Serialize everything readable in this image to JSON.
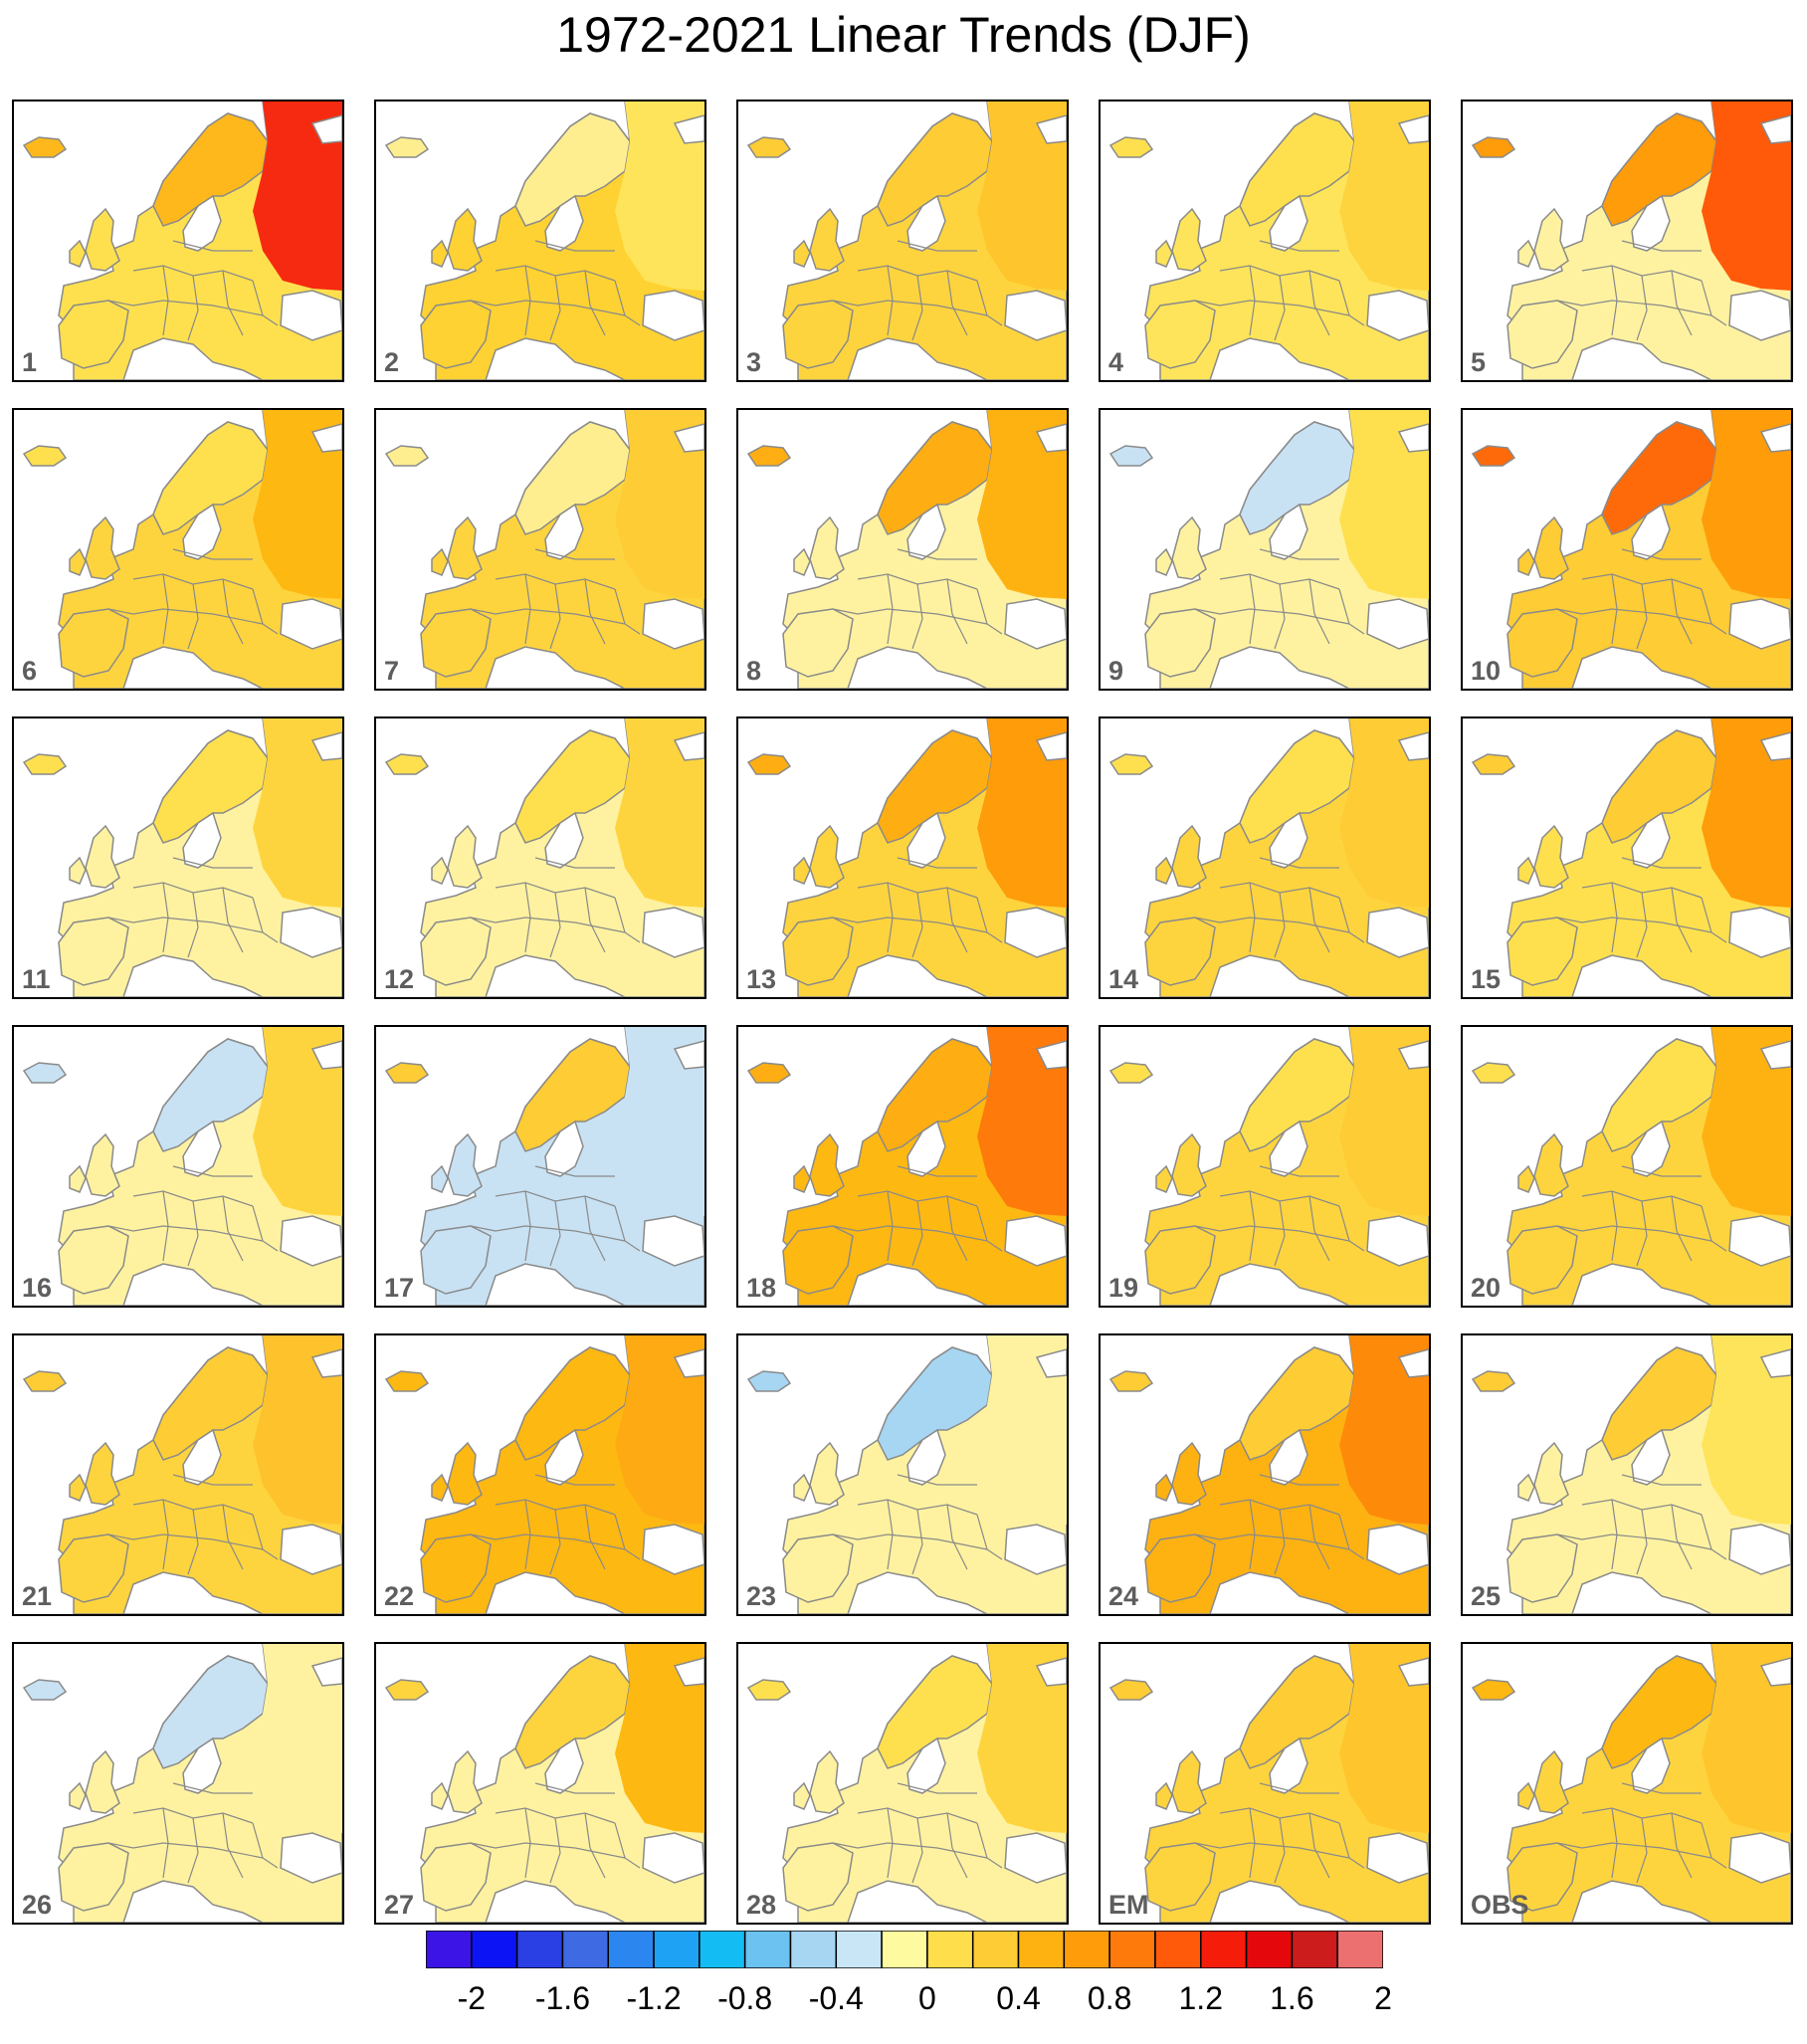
{
  "title": "1972-2021 Linear Trends (DJF)",
  "colorbar": {
    "colors": [
      "#3c14e6",
      "#0c14f6",
      "#2a40e4",
      "#3e6ae4",
      "#2c86f0",
      "#1ea3f4",
      "#14bcf4",
      "#6cc2f0",
      "#a6d6f2",
      "#c8e6f6",
      "#fefaa0",
      "#fede4a",
      "#fecc34",
      "#feb212",
      "#fe9c0a",
      "#fe7a0a",
      "#fe5a0a",
      "#f61c0a",
      "#e4080c",
      "#cc1c1c",
      "#ec7070"
    ],
    "tick_labels": [
      "-2",
      "-1.6",
      "-1.2",
      "-0.8",
      "-0.4",
      "0",
      "0.4",
      "0.8",
      "1.2",
      "1.6",
      "2"
    ]
  },
  "panels": [
    {
      "label": "1",
      "fills": {
        "background": "#fee04e",
        "north": "#feb81c",
        "east": "#f62a10"
      }
    },
    {
      "label": "2",
      "fills": {
        "background": "#fed232",
        "north": "#feee90",
        "east": "#fee45a"
      }
    },
    {
      "label": "3",
      "fills": {
        "background": "#fed43e",
        "north": "#fecc34",
        "east": "#fec62c"
      }
    },
    {
      "label": "4",
      "fills": {
        "background": "#fee45a",
        "north": "#fee04e",
        "east": "#fed43e"
      }
    },
    {
      "label": "5",
      "fills": {
        "background": "#fef2a0",
        "north": "#fe9c0a",
        "east": "#fe5a0a"
      }
    },
    {
      "label": "6",
      "fills": {
        "background": "#fed43e",
        "north": "#fee04e",
        "east": "#feb812"
      }
    },
    {
      "label": "7",
      "fills": {
        "background": "#fed43e",
        "north": "#feee90",
        "east": "#fecc34"
      }
    },
    {
      "label": "8",
      "fills": {
        "background": "#fef2a0",
        "north": "#feae12",
        "east": "#feb212"
      }
    },
    {
      "label": "9",
      "fills": {
        "background": "#fef2a0",
        "north": "#c8e2f4",
        "east": "#fee04e"
      }
    },
    {
      "label": "10",
      "fills": {
        "background": "#fecc34",
        "north": "#fe6a0a",
        "east": "#fe9c0a"
      }
    },
    {
      "label": "11",
      "fills": {
        "background": "#fef2a0",
        "north": "#fee04e",
        "east": "#fed43e"
      }
    },
    {
      "label": "12",
      "fills": {
        "background": "#fef2a0",
        "north": "#fee04e",
        "east": "#fed43e"
      }
    },
    {
      "label": "13",
      "fills": {
        "background": "#fed43e",
        "north": "#feae12",
        "east": "#fe9c0a"
      }
    },
    {
      "label": "14",
      "fills": {
        "background": "#fed43e",
        "north": "#fee04e",
        "east": "#fecc34"
      }
    },
    {
      "label": "15",
      "fills": {
        "background": "#fee04e",
        "north": "#fecc34",
        "east": "#fe9c0a"
      }
    },
    {
      "label": "16",
      "fills": {
        "background": "#fef2a0",
        "north": "#c8e2f4",
        "east": "#fed43e"
      }
    },
    {
      "label": "17",
      "fills": {
        "background": "#c8e2f4",
        "north": "#fecc34",
        "east": "#c8e2f4"
      }
    },
    {
      "label": "18",
      "fills": {
        "background": "#feb812",
        "north": "#feae12",
        "east": "#fe7a0a"
      }
    },
    {
      "label": "19",
      "fills": {
        "background": "#fed43e",
        "north": "#fee04e",
        "east": "#fecc34"
      }
    },
    {
      "label": "20",
      "fills": {
        "background": "#fed43e",
        "north": "#fee04e",
        "east": "#feb212"
      }
    },
    {
      "label": "21",
      "fills": {
        "background": "#fed43e",
        "north": "#fecc34",
        "east": "#fec22c"
      }
    },
    {
      "label": "22",
      "fills": {
        "background": "#feb812",
        "north": "#feb812",
        "east": "#feaa12"
      }
    },
    {
      "label": "23",
      "fills": {
        "background": "#fef2a0",
        "north": "#a6d6f2",
        "east": "#fef2a0"
      }
    },
    {
      "label": "24",
      "fills": {
        "background": "#feb212",
        "north": "#fecc34",
        "east": "#fe8a0a"
      }
    },
    {
      "label": "25",
      "fills": {
        "background": "#fef2a0",
        "north": "#fecc34",
        "east": "#fee45a"
      }
    },
    {
      "label": "26",
      "fills": {
        "background": "#fef2a0",
        "north": "#c8e2f4",
        "east": "#fef2a0"
      }
    },
    {
      "label": "27",
      "fills": {
        "background": "#fef2a0",
        "north": "#fed43e",
        "east": "#feb812"
      }
    },
    {
      "label": "28",
      "fills": {
        "background": "#fef2a0",
        "north": "#fee04e",
        "east": "#fed43e"
      }
    },
    {
      "label": "EM",
      "fills": {
        "background": "#fed43e",
        "north": "#fecc34",
        "east": "#fec62c"
      }
    },
    {
      "label": "OBS",
      "fills": {
        "background": "#fed43e",
        "north": "#feb812",
        "east": "#fec62c"
      }
    }
  ]
}
